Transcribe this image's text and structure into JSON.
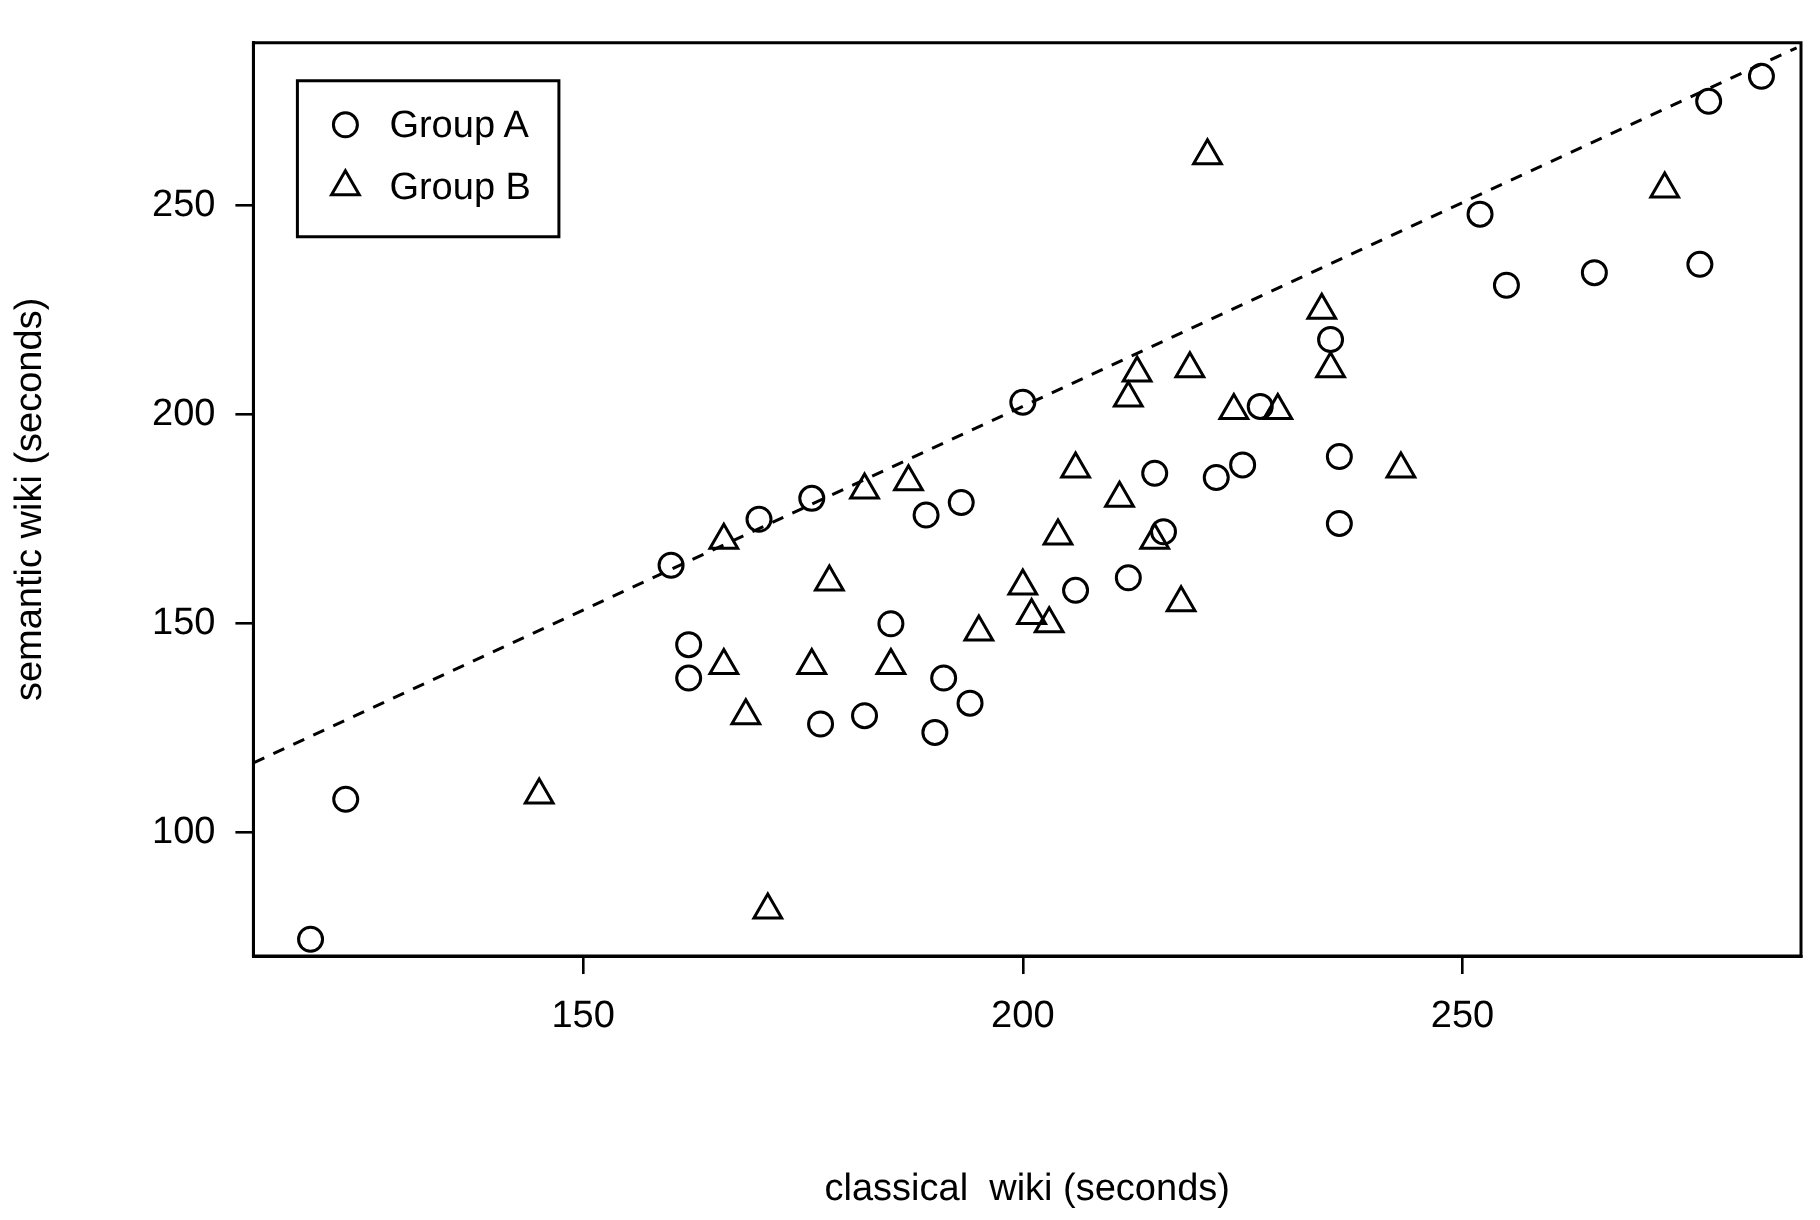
{
  "chart_data": {
    "type": "scatter",
    "xlabel": "classical  wiki (seconds)",
    "ylabel": "semantic wiki (seconds)",
    "xlim": [
      112.5,
      288.5
    ],
    "ylim": [
      70.5,
      289
    ],
    "xticks": [
      150,
      200,
      250
    ],
    "yticks": [
      100,
      150,
      200,
      250
    ],
    "grid": false,
    "legend": "top left",
    "series": [
      {
        "name": "Group A",
        "color": "#000000",
        "marker": "circle",
        "x": [
          119,
          123,
          160,
          162,
          162,
          170,
          176,
          189,
          193,
          200,
          215,
          222,
          225,
          227,
          216,
          206,
          212,
          185,
          191,
          194,
          177,
          182,
          190,
          278,
          284,
          252,
          255,
          265,
          277,
          235,
          236,
          236
        ],
        "values": [
          74.5,
          108,
          164,
          145,
          137,
          175,
          180,
          176,
          179,
          203,
          186,
          185,
          188,
          202,
          172,
          158,
          161,
          150,
          137,
          131,
          126,
          128,
          124,
          275,
          281,
          248,
          231,
          234,
          236,
          218,
          190,
          174
        ]
      },
      {
        "name": "Group B",
        "color": "#000000",
        "marker": "triangle",
        "x": [
          145,
          166,
          166,
          168.5,
          182,
          187,
          213,
          212,
          219,
          224,
          206,
          211,
          204,
          215,
          178,
          200,
          218,
          201,
          203,
          195,
          176,
          185,
          171,
          221,
          273,
          234,
          235,
          229,
          243
        ],
        "values": [
          109,
          170,
          140,
          128,
          182,
          184,
          210,
          204,
          211,
          201,
          187,
          180,
          171,
          170,
          160,
          159,
          155,
          152,
          150,
          148,
          140,
          140,
          81.5,
          262,
          254,
          225,
          211,
          201,
          187
        ]
      },
      {
        "type": "line",
        "color": "#000000",
        "marker": "none",
        "line_style": "dashed",
        "x": [
          112.5,
          288
        ],
        "values": [
          116.7,
          287.8
        ]
      }
    ]
  }
}
